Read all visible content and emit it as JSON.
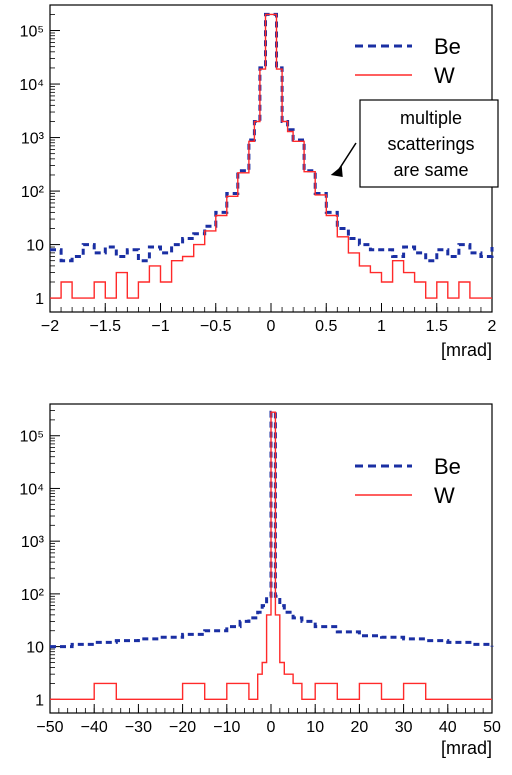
{
  "chart_data": [
    {
      "type": "line",
      "style": "step-histogram",
      "x_unit_label": "[mrad]",
      "xlim": [
        -2,
        2
      ],
      "x_ticks": [
        -2,
        -1.5,
        -1,
        -0.5,
        0,
        0.5,
        1,
        1.5,
        2
      ],
      "x_tick_labels": [
        "−2",
        "−1.5",
        "−1",
        "−0.5",
        "0",
        "0.5",
        "1",
        "1.5",
        "2"
      ],
      "y_scale": "log",
      "ylim": [
        0.55,
        300000
      ],
      "y_ticks": [
        1,
        10,
        100,
        1000,
        10000,
        100000
      ],
      "y_tick_labels": [
        "1",
        "10",
        "10²",
        "10³",
        "10⁴",
        "10⁵"
      ],
      "grid": false,
      "legend_position": "top-right",
      "annotation": {
        "lines": [
          "multiple",
          "scatterings",
          "are same"
        ],
        "arrow_target": [
          0.45,
          200
        ]
      },
      "series": [
        {
          "name": "Be",
          "color": "#1a2fa3",
          "line": "dashed",
          "x": [
            -2.0,
            -1.9,
            -1.8,
            -1.7,
            -1.6,
            -1.5,
            -1.4,
            -1.3,
            -1.2,
            -1.1,
            -1.0,
            -0.9,
            -0.8,
            -0.7,
            -0.6,
            -0.5,
            -0.4,
            -0.3,
            -0.2,
            -0.15,
            -0.1,
            -0.05,
            0,
            0.05,
            0.1,
            0.15,
            0.2,
            0.3,
            0.4,
            0.5,
            0.6,
            0.7,
            0.8,
            0.9,
            1.0,
            1.1,
            1.2,
            1.3,
            1.4,
            1.5,
            1.6,
            1.7,
            1.8,
            1.9,
            2.0
          ],
          "y": [
            8,
            5,
            6,
            10,
            7,
            9,
            6,
            8,
            5,
            9,
            7,
            10,
            13,
            16,
            22,
            40,
            90,
            240,
            900,
            2000,
            20000,
            200000,
            200000,
            20000,
            2000,
            1400,
            900,
            240,
            90,
            40,
            20,
            13,
            10,
            8,
            8,
            6,
            9,
            7,
            5,
            8,
            6,
            10,
            7,
            6,
            9
          ]
        },
        {
          "name": "W",
          "color": "#ff2a2a",
          "line": "solid",
          "x": [
            -2.0,
            -1.9,
            -1.8,
            -1.7,
            -1.6,
            -1.5,
            -1.4,
            -1.3,
            -1.2,
            -1.1,
            -1.0,
            -0.9,
            -0.8,
            -0.7,
            -0.6,
            -0.5,
            -0.4,
            -0.3,
            -0.2,
            -0.15,
            -0.1,
            -0.05,
            0,
            0.05,
            0.1,
            0.15,
            0.2,
            0.3,
            0.4,
            0.5,
            0.6,
            0.7,
            0.8,
            0.9,
            1.0,
            1.1,
            1.2,
            1.3,
            1.4,
            1.5,
            1.6,
            1.7,
            1.8,
            1.9,
            2.0
          ],
          "y": [
            1,
            2,
            1,
            1,
            2,
            1,
            3,
            1,
            2,
            4,
            2,
            5,
            6,
            10,
            18,
            35,
            80,
            220,
            850,
            2000,
            19000,
            200000,
            200000,
            19000,
            2000,
            1300,
            850,
            230,
            85,
            35,
            14,
            7,
            4,
            3,
            2,
            5,
            3,
            2,
            1,
            2,
            1,
            2,
            1,
            1,
            1
          ]
        }
      ]
    },
    {
      "type": "line",
      "style": "step-histogram",
      "x_unit_label": "[mrad]",
      "xlim": [
        -50,
        50
      ],
      "x_ticks": [
        -50,
        -40,
        -30,
        -20,
        -10,
        0,
        10,
        20,
        30,
        40,
        50
      ],
      "x_tick_labels": [
        "−50",
        "−40",
        "−30",
        "−20",
        "−10",
        "0",
        "10",
        "20",
        "30",
        "40",
        "50"
      ],
      "y_scale": "log",
      "ylim": [
        0.55,
        400000
      ],
      "y_ticks": [
        1,
        10,
        100,
        1000,
        10000,
        100000
      ],
      "y_tick_labels": [
        "1",
        "10",
        "10²",
        "10³",
        "10⁴",
        "10⁵"
      ],
      "grid": false,
      "legend_position": "top-right",
      "series": [
        {
          "name": "Be",
          "color": "#1a2fa3",
          "line": "dashed",
          "x": [
            -50,
            -45,
            -40,
            -35,
            -30,
            -25,
            -20,
            -15,
            -10,
            -7,
            -5,
            -3,
            -2,
            -1,
            0,
            1,
            2,
            3,
            5,
            7,
            10,
            15,
            20,
            25,
            30,
            35,
            40,
            45,
            50
          ],
          "y": [
            10,
            11,
            12,
            13,
            14,
            15,
            17,
            20,
            24,
            30,
            35,
            45,
            60,
            90,
            280000,
            90,
            60,
            45,
            35,
            30,
            24,
            19,
            16,
            15,
            14,
            13,
            12,
            11,
            10
          ]
        },
        {
          "name": "W",
          "color": "#ff2a2a",
          "line": "solid",
          "x": [
            -50,
            -45,
            -40,
            -35,
            -30,
            -25,
            -20,
            -15,
            -10,
            -7,
            -5,
            -3,
            -2,
            -1,
            0,
            1,
            2,
            3,
            5,
            7,
            10,
            15,
            20,
            25,
            30,
            35,
            40,
            45,
            50
          ],
          "y": [
            1,
            1,
            2,
            1,
            1,
            1,
            2,
            1,
            2,
            2,
            1,
            3,
            5,
            40,
            280000,
            40,
            5,
            3,
            2,
            1,
            2,
            1,
            2,
            1,
            2,
            1,
            1,
            1,
            1
          ]
        }
      ]
    }
  ]
}
